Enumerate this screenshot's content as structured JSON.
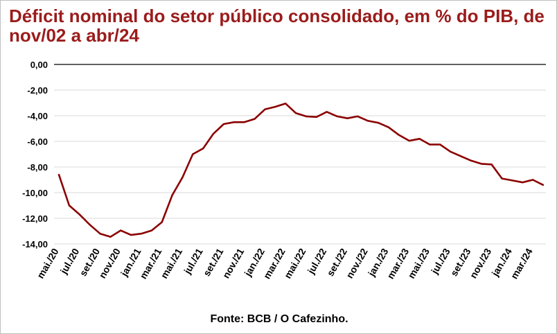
{
  "chart_data": {
    "type": "line",
    "title": "Déficit nominal do setor público consolidado, em % do PIB, de nov/02 a abr/24",
    "source": "Fonte: BCB / O Cafezinho.",
    "xlabel": "",
    "ylabel": "",
    "ylim": [
      -14,
      0
    ],
    "yticks": [
      "0,00",
      "-2,00",
      "-4,00",
      "-6,00",
      "-8,00",
      "-10,00",
      "-12,00",
      "-14,00"
    ],
    "grid": true,
    "legend": "none",
    "color": "#8b0000",
    "xtick_labels": [
      "mai./20",
      "jul./20",
      "set./20",
      "nov./20",
      "jan./21",
      "mar./21",
      "mai./21",
      "jul./21",
      "set./21",
      "nov./21",
      "jan./22",
      "mar./22",
      "mai./22",
      "jul./22",
      "set./22",
      "nov./22",
      "jan./23",
      "mar./23",
      "mai./23",
      "jul./23",
      "set./23",
      "nov./23",
      "jan./24",
      "mar./24"
    ],
    "x": [
      "mai./20",
      "jun./20",
      "jul./20",
      "ago./20",
      "set./20",
      "out./20",
      "nov./20",
      "dez./20",
      "jan./21",
      "fev./21",
      "mar./21",
      "abr./21",
      "mai./21",
      "jun./21",
      "jul./21",
      "ago./21",
      "set./21",
      "out./21",
      "nov./21",
      "dez./21",
      "jan./22",
      "fev./22",
      "mar./22",
      "abr./22",
      "mai./22",
      "jun./22",
      "jul./22",
      "ago./22",
      "set./22",
      "out./22",
      "nov./22",
      "dez./22",
      "jan./23",
      "fev./23",
      "mar./23",
      "abr./23",
      "mai./23",
      "jun./23",
      "jul./23",
      "ago./23",
      "set./23",
      "out./23",
      "nov./23",
      "dez./23",
      "jan./24",
      "fev./24",
      "mar./24",
      "abr./24"
    ],
    "series": [
      {
        "values": [
          -8.6,
          -11.0,
          -11.7,
          -12.5,
          -13.2,
          -13.45,
          -12.95,
          -13.3,
          -13.2,
          -12.95,
          -12.3,
          -10.2,
          -8.8,
          -7.0,
          -6.55,
          -5.4,
          -4.65,
          -4.5,
          -4.5,
          -4.25,
          -3.5,
          -3.3,
          -3.05,
          -3.8,
          -4.05,
          -4.1,
          -3.7,
          -4.05,
          -4.2,
          -4.05,
          -4.4,
          -4.55,
          -4.9,
          -5.5,
          -5.95,
          -5.8,
          -6.25,
          -6.25,
          -6.8,
          -7.15,
          -7.5,
          -7.75,
          -7.8,
          -8.9,
          -9.05,
          -9.2,
          -9.0,
          -9.4
        ]
      }
    ]
  }
}
